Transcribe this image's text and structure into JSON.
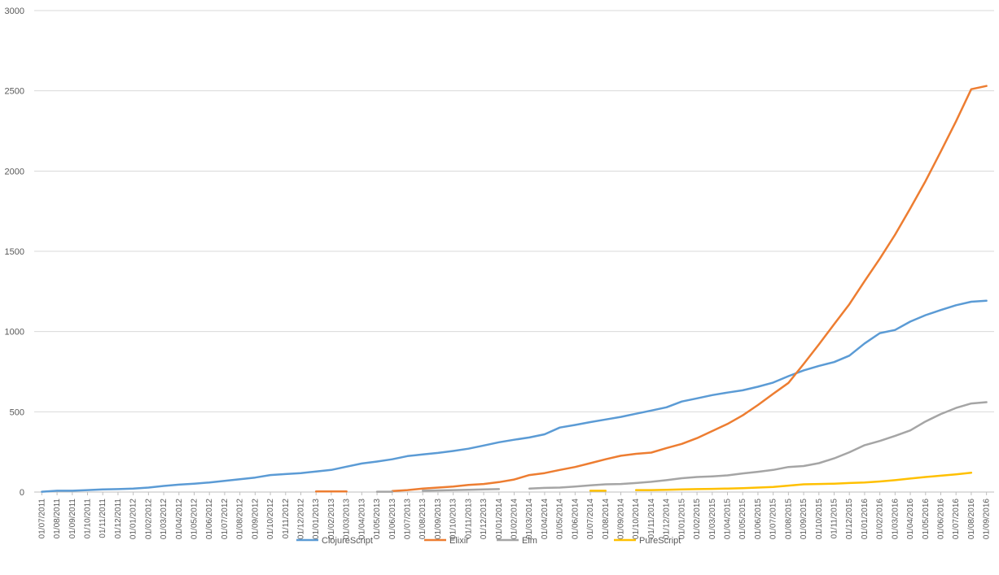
{
  "chart_data": {
    "type": "line",
    "title": "",
    "xlabel": "",
    "ylabel": "",
    "ylim": [
      0,
      3000
    ],
    "yticks": [
      0,
      500,
      1000,
      1500,
      2000,
      2500,
      3000
    ],
    "grid": true,
    "legend_position": "bottom",
    "x": [
      "01/07/2011",
      "01/08/2011",
      "01/09/2011",
      "01/10/2011",
      "01/11/2011",
      "01/12/2011",
      "01/01/2012",
      "01/02/2012",
      "01/03/2012",
      "01/04/2012",
      "01/05/2012",
      "01/06/2012",
      "01/07/2012",
      "01/08/2012",
      "01/09/2012",
      "01/10/2012",
      "01/11/2012",
      "01/12/2012",
      "01/01/2013",
      "01/02/2013",
      "01/03/2013",
      "01/04/2013",
      "01/05/2013",
      "01/06/2013",
      "01/07/2013",
      "01/08/2013",
      "01/09/2013",
      "01/10/2013",
      "01/11/2013",
      "01/12/2013",
      "01/01/2014",
      "01/02/2014",
      "01/03/2014",
      "01/04/2014",
      "01/05/2014",
      "01/06/2014",
      "01/07/2014",
      "01/08/2014",
      "01/09/2014",
      "01/10/2014",
      "01/11/2014",
      "01/12/2014",
      "01/01/2015",
      "01/02/2015",
      "01/03/2015",
      "01/04/2015",
      "01/05/2015",
      "01/06/2015",
      "01/07/2015",
      "01/08/2015",
      "01/09/2015",
      "01/10/2015",
      "01/11/2015",
      "01/12/2015",
      "01/01/2016",
      "01/02/2016",
      "01/03/2016",
      "01/04/2016",
      "01/05/2016",
      "01/06/2016",
      "01/07/2016",
      "01/08/2016",
      "01/09/2016"
    ],
    "series": [
      {
        "name": "ClojureScript",
        "color": "#5b9bd5",
        "values": [
          2,
          8,
          8,
          12,
          16,
          18,
          22,
          28,
          38,
          46,
          52,
          60,
          70,
          80,
          90,
          106,
          112,
          118,
          128,
          138,
          158,
          178,
          190,
          204,
          224,
          234,
          244,
          256,
          270,
          290,
          310,
          326,
          340,
          360,
          402,
          418,
          436,
          452,
          468,
          488,
          508,
          528,
          564,
          584,
          604,
          620,
          634,
          656,
          682,
          722,
          758,
          786,
          810,
          850,
          926,
          990,
          1010,
          1062,
          1102,
          1134,
          1164,
          1186,
          1192
        ]
      },
      {
        "name": "Elixir",
        "color": "#ed7d31",
        "values": [
          null,
          null,
          null,
          null,
          null,
          null,
          null,
          null,
          null,
          null,
          null,
          null,
          null,
          null,
          null,
          null,
          null,
          null,
          4,
          4,
          4,
          null,
          null,
          6,
          12,
          22,
          28,
          34,
          44,
          50,
          62,
          78,
          106,
          118,
          138,
          156,
          180,
          204,
          226,
          238,
          246,
          274,
          300,
          336,
          380,
          424,
          478,
          542,
          612,
          680,
          798,
          920,
          1046,
          1170,
          1314,
          1454,
          1604,
          1768,
          1938,
          2122,
          2310,
          2510,
          2530
        ]
      },
      {
        "name": "Elm",
        "color": "#a5a5a5",
        "values": [
          null,
          null,
          null,
          null,
          null,
          null,
          null,
          null,
          null,
          null,
          null,
          null,
          null,
          null,
          null,
          null,
          null,
          0,
          null,
          null,
          null,
          null,
          2,
          2,
          null,
          8,
          10,
          12,
          14,
          16,
          18,
          null,
          22,
          26,
          28,
          34,
          42,
          48,
          50,
          56,
          64,
          74,
          86,
          94,
          98,
          104,
          116,
          126,
          138,
          156,
          162,
          180,
          210,
          248,
          292,
          318,
          350,
          384,
          440,
          486,
          524,
          552,
          560
        ]
      },
      {
        "name": "PureScript",
        "color": "#ffc000",
        "values": [
          null,
          null,
          null,
          null,
          null,
          null,
          null,
          null,
          null,
          null,
          null,
          null,
          null,
          null,
          null,
          null,
          null,
          null,
          null,
          null,
          null,
          null,
          null,
          null,
          null,
          null,
          null,
          null,
          null,
          null,
          null,
          null,
          null,
          null,
          null,
          null,
          8,
          8,
          null,
          12,
          12,
          14,
          16,
          18,
          20,
          22,
          24,
          28,
          32,
          40,
          48,
          50,
          52,
          56,
          60,
          66,
          74,
          84,
          94,
          102,
          110,
          120,
          null
        ]
      }
    ]
  }
}
